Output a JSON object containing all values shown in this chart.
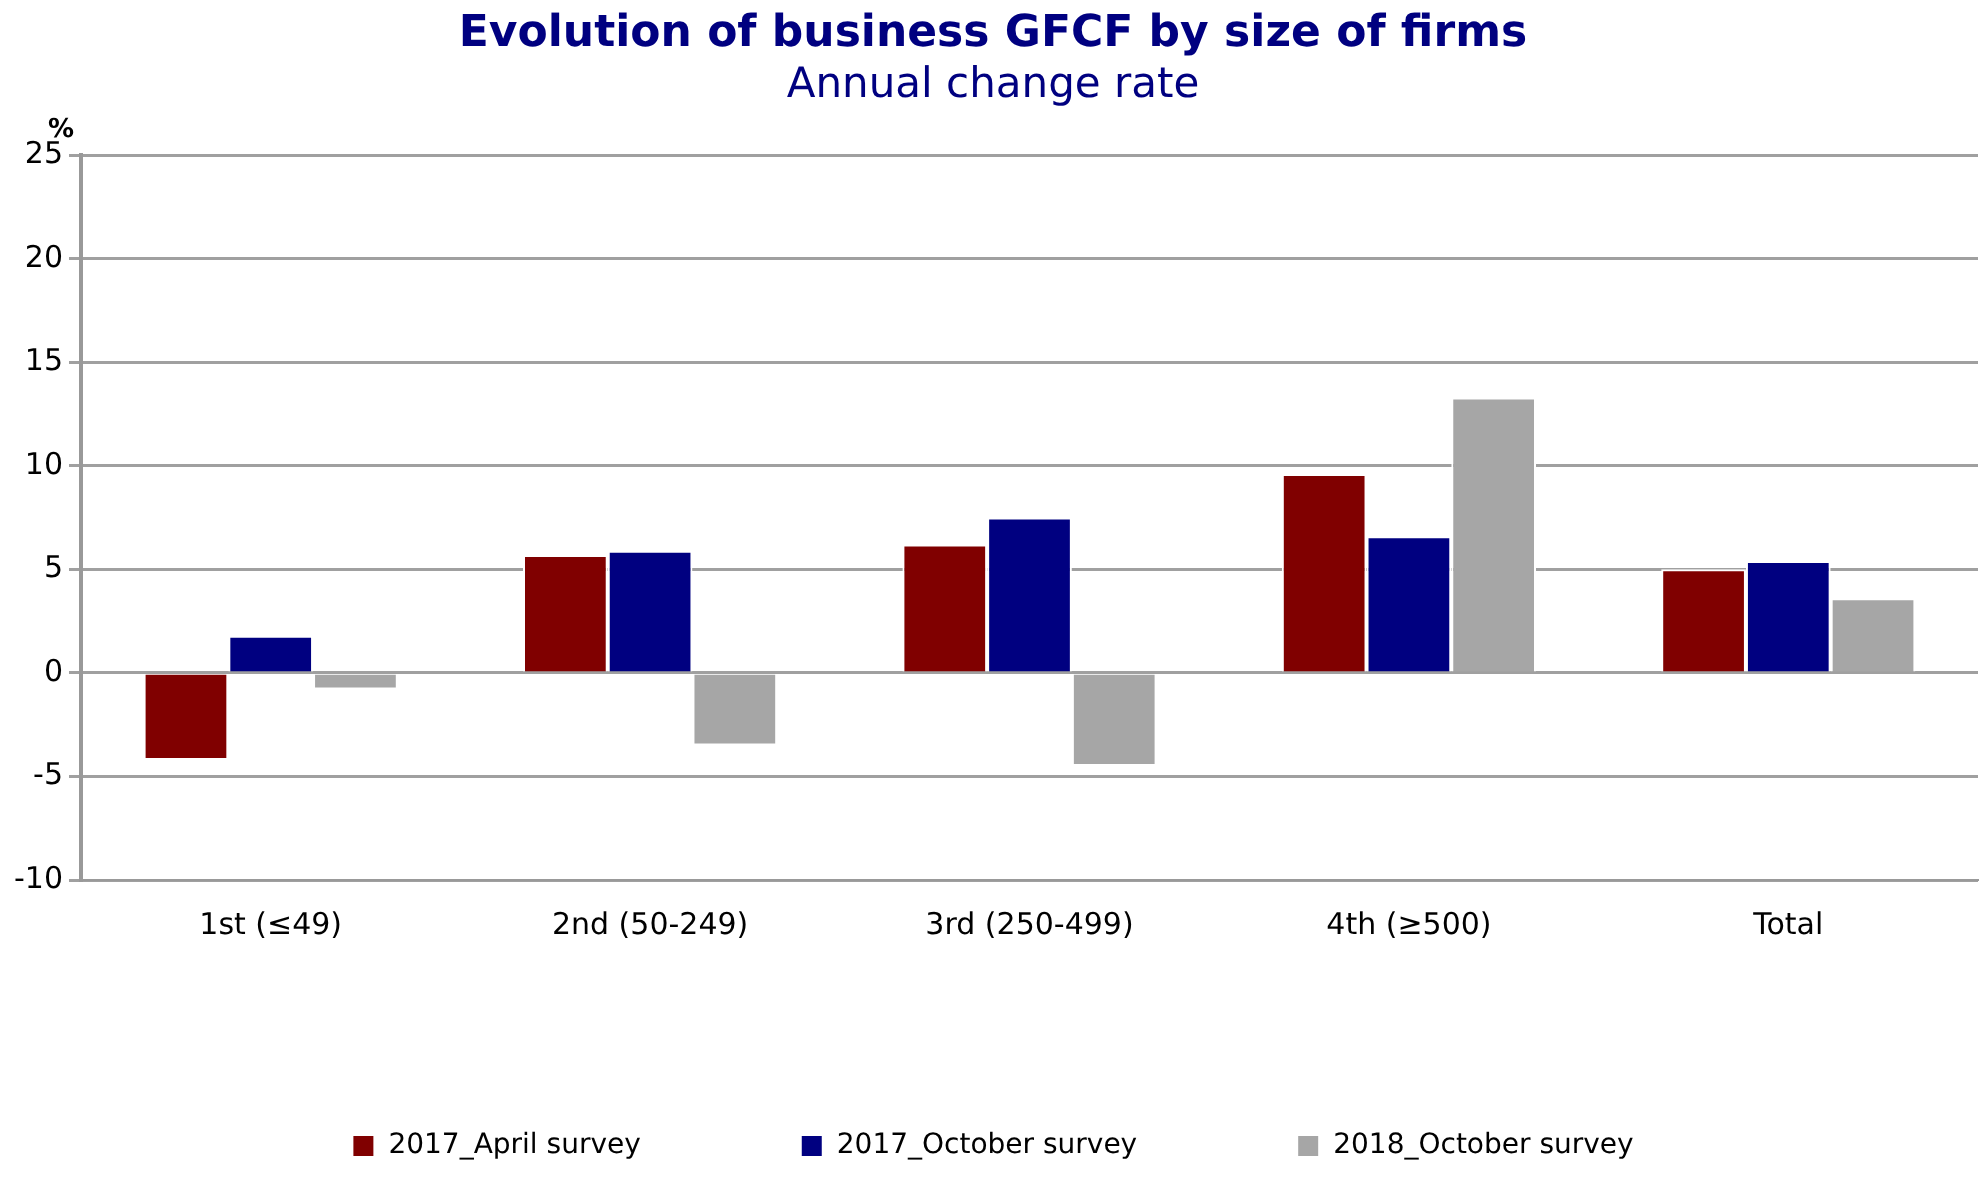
{
  "chart_data": {
    "type": "bar",
    "title": "Evolution of business GFCF by size of firms",
    "subtitle": "Annual change rate",
    "ylabel": "%",
    "categories": [
      "1st (≤49)",
      "2nd (50-249)",
      "3rd (250-499)",
      "4th (≥500)",
      "Total"
    ],
    "series": [
      {
        "name": "2017_April survey",
        "color": "#800000",
        "values": [
          -4.2,
          5.7,
          6.2,
          9.6,
          5.0
        ]
      },
      {
        "name": "2017_October survey",
        "color": "#000080",
        "values": [
          1.8,
          5.9,
          7.5,
          6.6,
          5.4
        ]
      },
      {
        "name": "2018_October survey",
        "color": "#a6a6a6",
        "values": [
          -0.8,
          -3.5,
          -4.5,
          13.3,
          3.6
        ]
      }
    ],
    "ylim": [
      -10,
      25
    ],
    "yticks": [
      -10,
      -5,
      0,
      5,
      10,
      15,
      20,
      25
    ],
    "grid": "y",
    "legend": "bottom"
  }
}
